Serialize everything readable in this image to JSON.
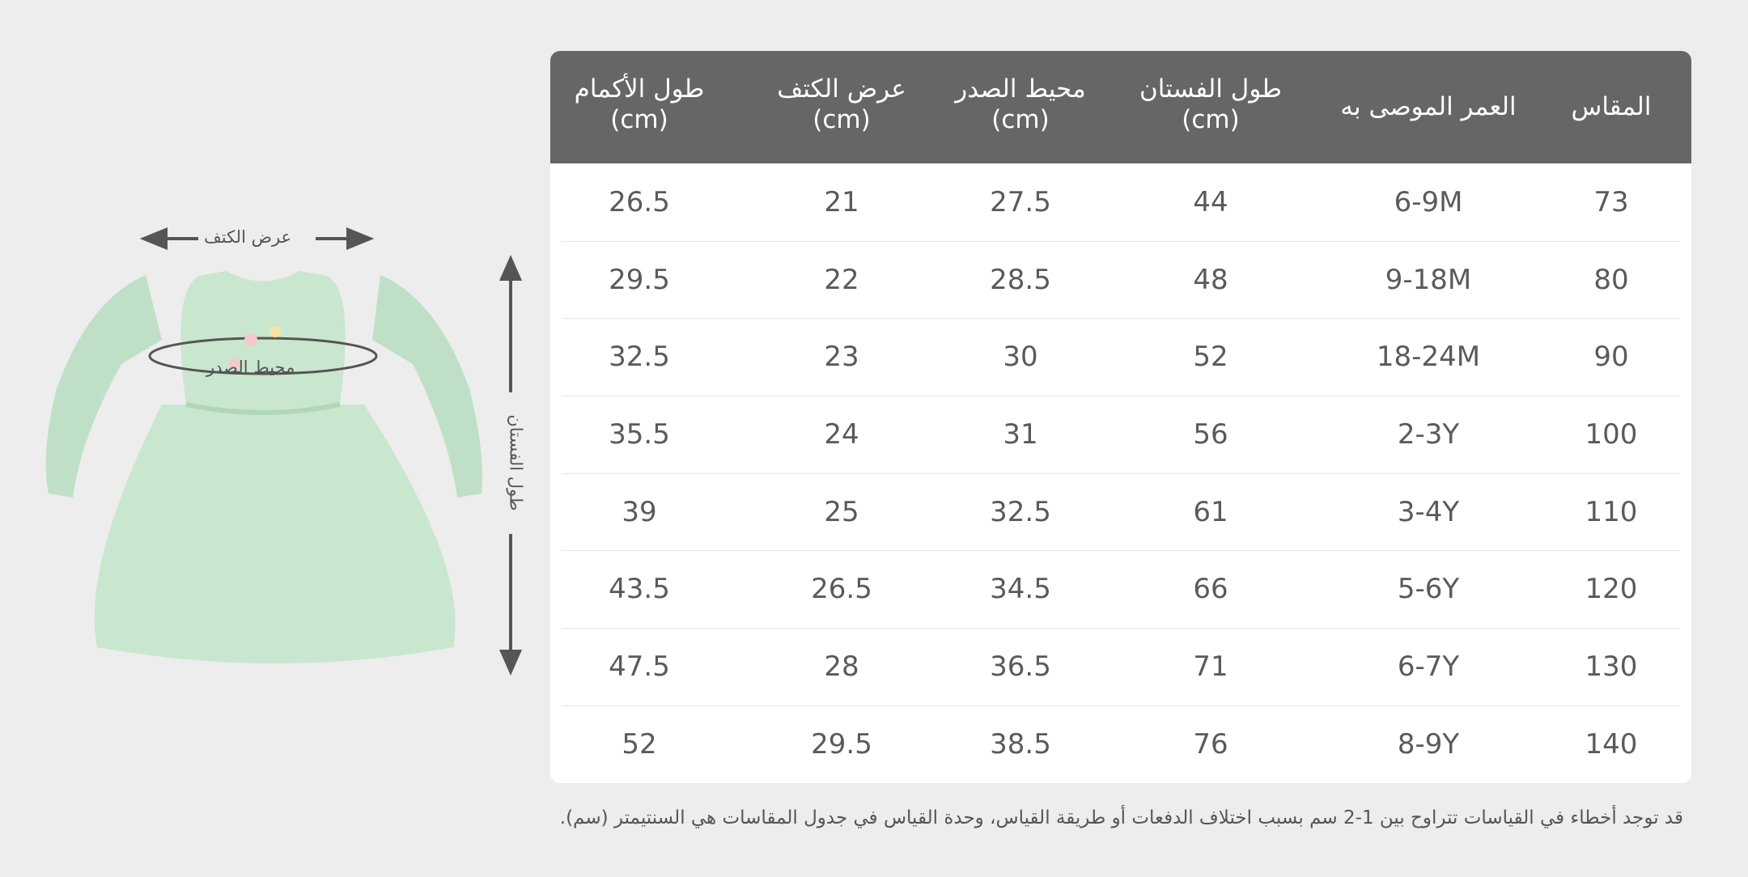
{
  "illustration": {
    "shoulder_label": "عرض الكتف",
    "chest_label": "محيط الصدر",
    "length_label": "طول الفستان",
    "dress_color": "#c9e6cf"
  },
  "table": {
    "header_bg": "#666666",
    "columns": [
      {
        "title": "المقاس",
        "unit": ""
      },
      {
        "title": "العمر الموصى به",
        "unit": ""
      },
      {
        "title": "طول الفستان",
        "unit": "(cm)"
      },
      {
        "title": "محيط الصدر",
        "unit": "(cm)"
      },
      {
        "title": "عرض الكتف",
        "unit": "(cm)"
      },
      {
        "title": "طول الأكمام",
        "unit": "(cm)"
      }
    ],
    "rows": [
      [
        "73",
        "6-9M",
        "44",
        "27.5",
        "21",
        "26.5"
      ],
      [
        "80",
        "9-18M",
        "48",
        "28.5",
        "22",
        "29.5"
      ],
      [
        "90",
        "18-24M",
        "52",
        "30",
        "23",
        "32.5"
      ],
      [
        "100",
        "2-3Y",
        "56",
        "31",
        "24",
        "35.5"
      ],
      [
        "110",
        "3-4Y",
        "61",
        "32.5",
        "25",
        "39"
      ],
      [
        "120",
        "5-6Y",
        "66",
        "34.5",
        "26.5",
        "43.5"
      ],
      [
        "130",
        "6-7Y",
        "71",
        "36.5",
        "28",
        "47.5"
      ],
      [
        "140",
        "8-9Y",
        "76",
        "38.5",
        "29.5",
        "52"
      ]
    ]
  },
  "footnote": "قد توجد أخطاء في القياسات تتراوح بين 1-2 سم بسبب اختلاف الدفعات أو طريقة القياس، وحدة القياس في جدول المقاسات هي السنتيمتر (سم)."
}
